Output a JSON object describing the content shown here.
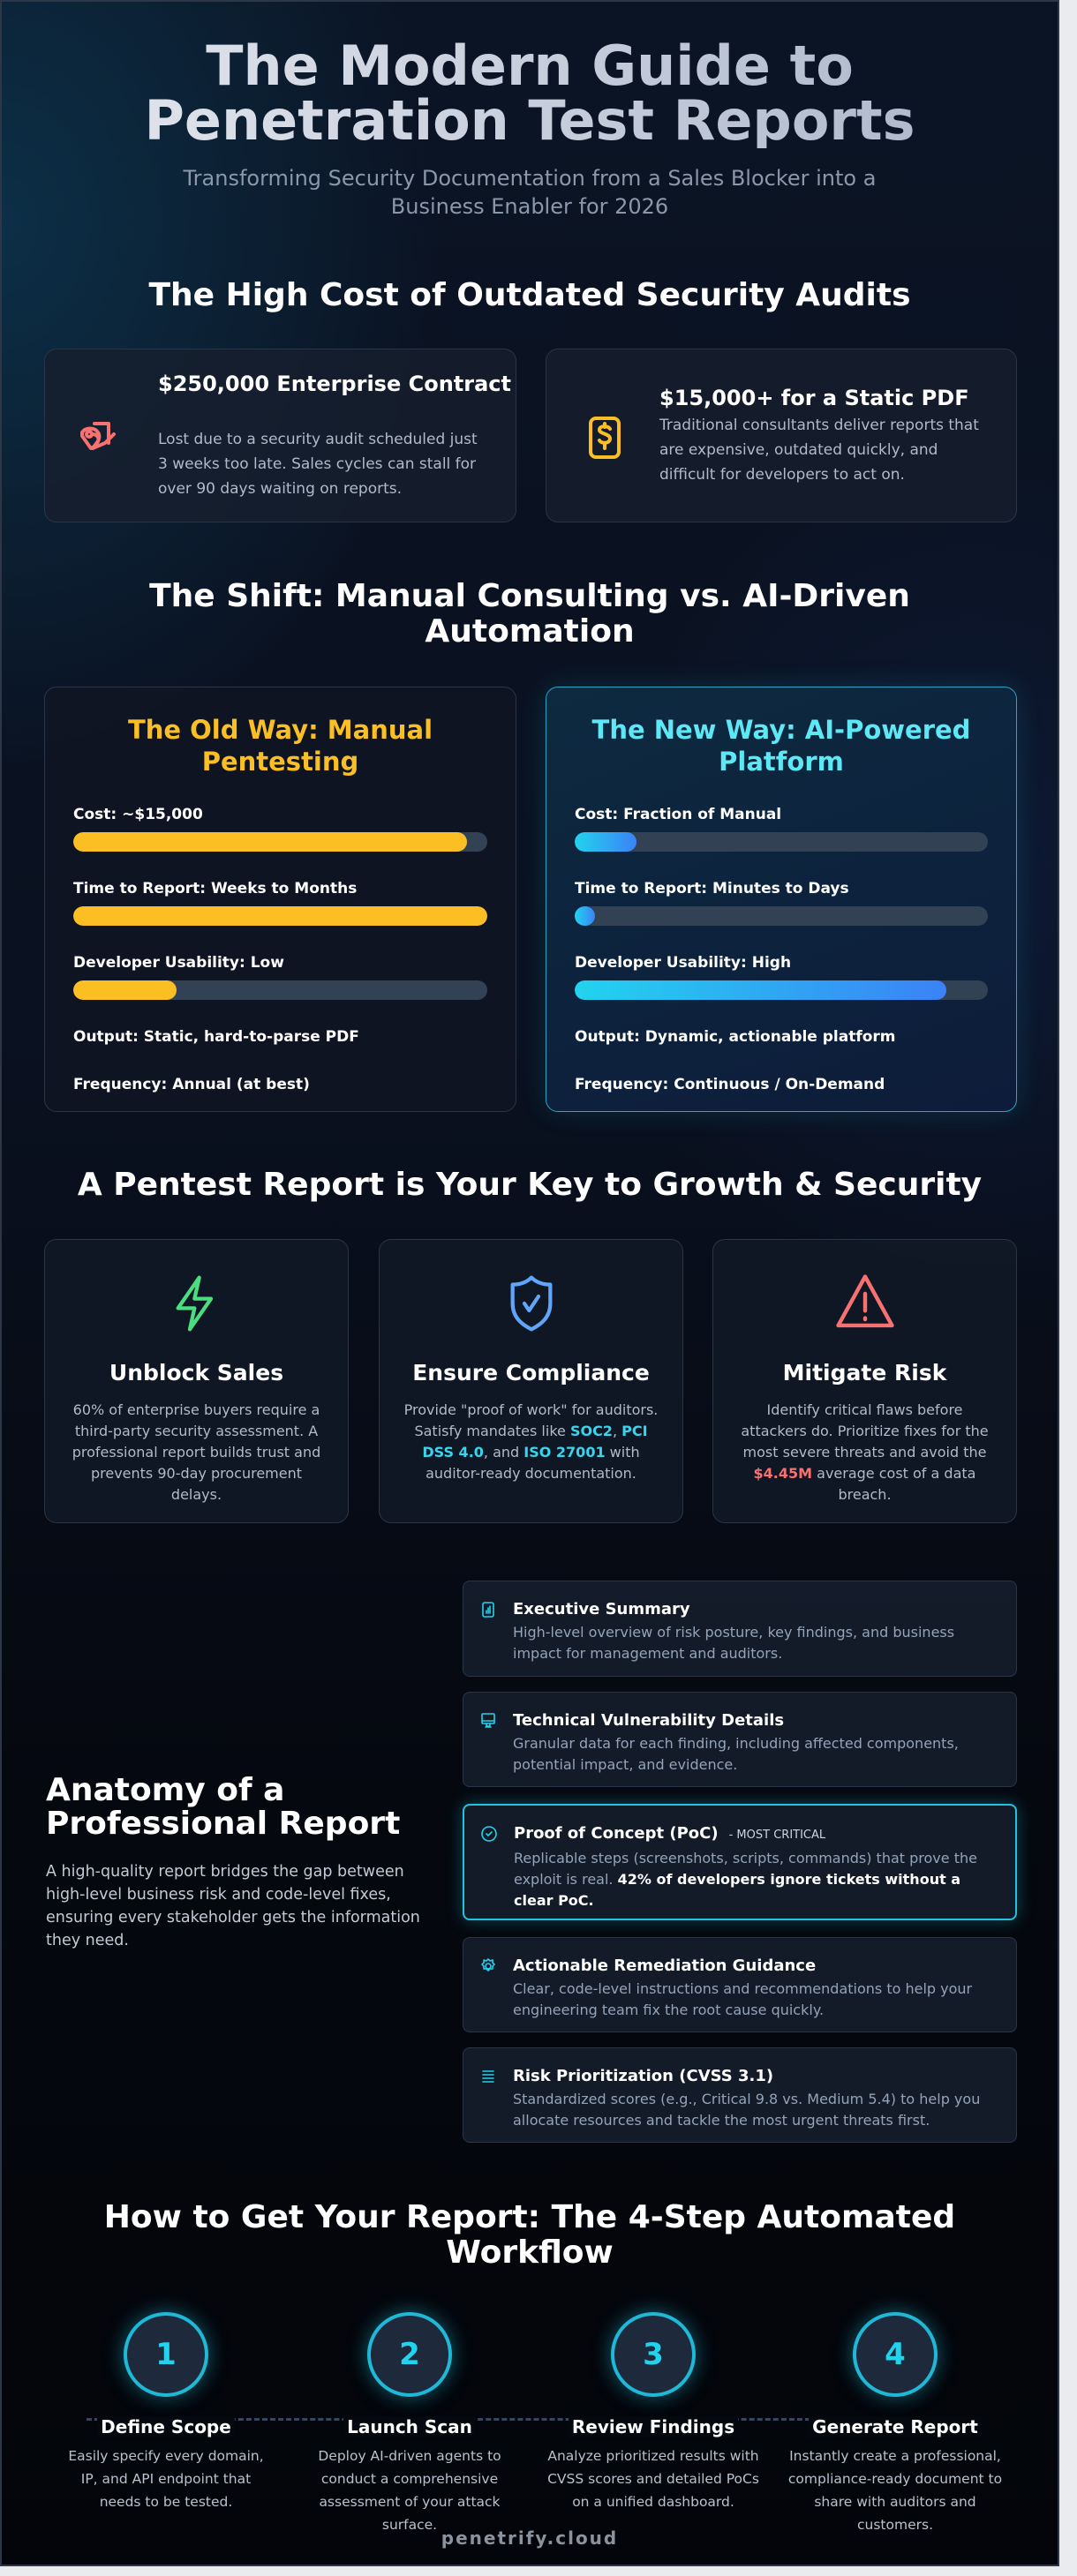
{
  "header": {
    "title_line1": "The Modern Guide to",
    "title_line2": "Penetration Test Reports",
    "subtitle_line1": "Transforming Security Documentation from a Sales Blocker into a",
    "subtitle_line2": "Business Enabler for 2026"
  },
  "cost_section": {
    "title": "The High Cost of Outdated Security Audits",
    "cards": [
      {
        "icon": "lost-deal-icon",
        "title": "$250,000 Enterprise Contract",
        "text": "Lost due to a security audit scheduled just 3 weeks too late. Sales cycles can stall for over 90 days waiting on reports.",
        "color": "#f87171"
      },
      {
        "icon": "dollar-file-icon",
        "title": "$15,000+ for a Static PDF",
        "text": "Traditional consultants deliver reports that are expensive, outdated quickly, and difficult for developers to act on.",
        "color": "#fbbf24"
      }
    ]
  },
  "shift_section": {
    "title_line1": "The Shift: Manual Consulting vs. AI-Driven",
    "title_line2": "Automation",
    "old": {
      "title": "The Old Way: Manual Pentesting",
      "color": "#fbbf24",
      "metrics": [
        {
          "label": "Cost: ~$15,000",
          "percent": 95
        },
        {
          "label": "Time to Report: Weeks to Months",
          "percent": 100
        },
        {
          "label": "Developer Usability: Low",
          "percent": 25
        }
      ],
      "output": "Output: Static, hard-to-parse PDF",
      "frequency": "Frequency: Annual (at best)"
    },
    "new": {
      "title": "The New Way: AI-Powered Platform",
      "color": "#5ee7f5",
      "metrics": [
        {
          "label": "Cost: Fraction of Manual",
          "percent": 15
        },
        {
          "label": "Time to Report: Minutes to Days",
          "percent": 5
        },
        {
          "label": "Developer Usability: High",
          "percent": 90
        }
      ],
      "output": "Output: Dynamic, actionable platform",
      "frequency": "Frequency: Continuous / On-Demand"
    }
  },
  "benefits": {
    "title": "A Pentest Report is Your Key to Growth & Security",
    "cards": [
      {
        "icon": "lightning-icon",
        "title": "Unblock Sales",
        "text": "60% of enterprise buyers require a third-party security assessment. A professional report builds trust and prevents 90-day procurement delays."
      },
      {
        "icon": "shield-check-icon",
        "title": "Ensure Compliance",
        "t1": "Provide \"proof of work\" for auditors. Satisfy mandates like ",
        "h1": "SOC2",
        "t2": ", ",
        "h2": "PCI DSS 4.0",
        "t3": ", and ",
        "h3": "ISO 27001",
        "t4": " with auditor-ready documentation."
      },
      {
        "icon": "warning-triangle-icon",
        "title": "Mitigate Risk",
        "t1": "Identify critical flaws before attackers do. Prioritize fixes for the most severe threats and avoid the ",
        "h1": "$4.45M",
        "t2": " average cost of a data breach."
      }
    ]
  },
  "anatomy": {
    "title_line1": "Anatomy of a",
    "title_line2": "Professional Report",
    "text": "A high-quality report bridges the gap between high-level business risk and code-level fixes, ensuring every stakeholder gets the information they need.",
    "items": [
      {
        "icon": "chart-icon",
        "title": "Executive Summary",
        "text": "High-level overview of risk posture, key findings, and business impact for management and auditors."
      },
      {
        "icon": "monitor-icon",
        "title": "Technical Vulnerability Details",
        "text": "Granular data for each finding, including affected components, potential impact, and evidence."
      },
      {
        "icon": "check-circle-icon",
        "title": "Proof of Concept (PoC)",
        "tag": "- MOST CRITICAL",
        "text": "Replicable steps (screenshots, scripts, commands) that prove the exploit is real. ",
        "bold": "42% of developers ignore tickets without a clear PoC."
      },
      {
        "icon": "gear-icon",
        "title": "Actionable Remediation Guidance",
        "text": "Clear, code-level instructions and recommendations to help your engineering team fix the root cause quickly."
      },
      {
        "icon": "list-icon",
        "title": "Risk Prioritization (CVSS 3.1)",
        "text": "Standardized scores (e.g., Critical 9.8 vs. Medium 5.4) to help you allocate resources and tackle the most urgent threats first."
      }
    ]
  },
  "workflow": {
    "title_line1": "How to Get Your Report: The 4-Step Automated",
    "title_line2": "Workflow",
    "steps": [
      {
        "num": "1",
        "title": "Define Scope",
        "text": "Easily specify every domain, IP, and API endpoint that needs to be tested."
      },
      {
        "num": "2",
        "title": "Launch Scan",
        "text": "Deploy AI-driven agents to conduct a comprehensive assessment of your attack surface."
      },
      {
        "num": "3",
        "title": "Review Findings",
        "text": "Analyze prioritized results with CVSS scores and detailed PoCs on a unified dashboard."
      },
      {
        "num": "4",
        "title": "Generate Report",
        "text": "Instantly create a professional, compliance-ready document to share with auditors and customers."
      }
    ]
  },
  "footer": {
    "brand": "penetrify.cloud"
  },
  "colors": {
    "accent": "#22d3ee",
    "blue": "#3b82f6",
    "green": "#4ade80",
    "red": "#f87171",
    "yellow": "#fbbf24"
  }
}
